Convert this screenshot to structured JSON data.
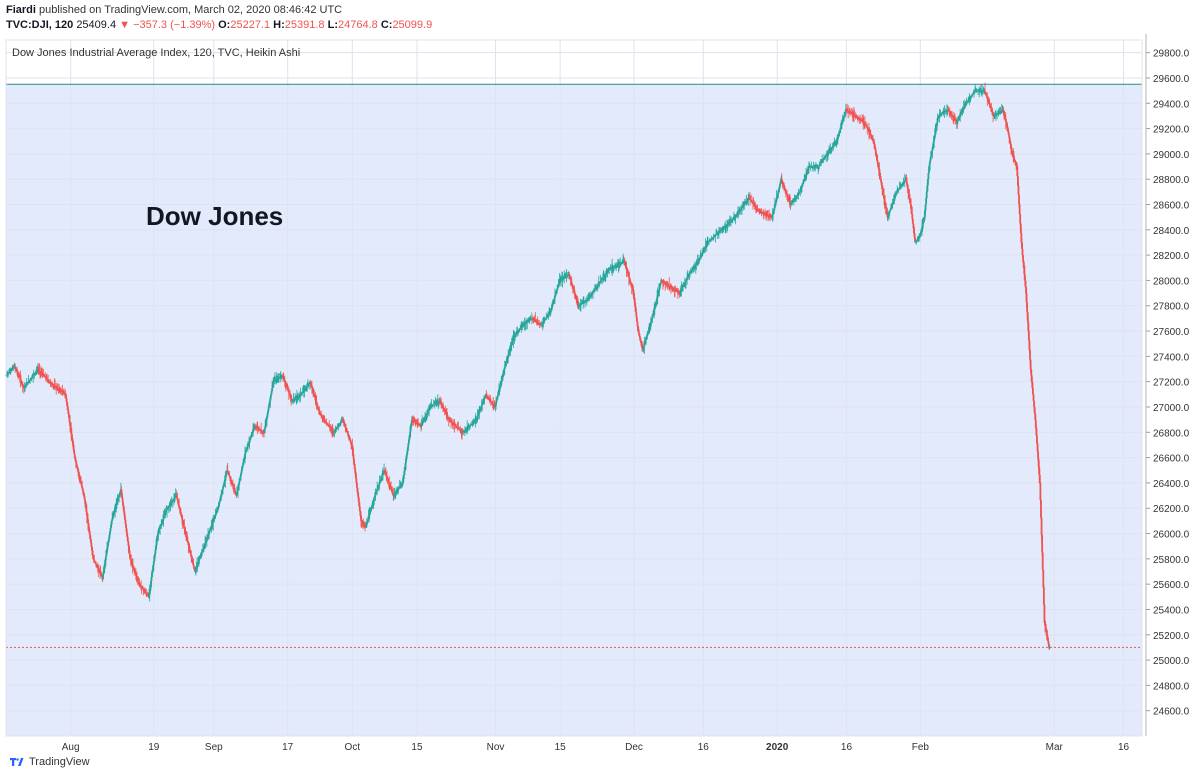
{
  "header": {
    "author": "Fiardi",
    "published_text": "published on TradingView.com, March 02, 2020 08:46:42 UTC",
    "symbol": "TVC:DJI, 120",
    "last": "25409.4",
    "change": "−357.3 (−1.39%)",
    "open_label": "O:",
    "open": "25227.1",
    "high_label": "H:",
    "high": "25391.8",
    "low_label": "L:",
    "low": "24764.8",
    "close_label": "C:",
    "close": "25099.9"
  },
  "footer": {
    "brand": "TradingView",
    "logo_icon": "tradingview-logo-icon"
  },
  "colors": {
    "up": "#26a69a",
    "down": "#ef5350",
    "background_band": "#e3eafb",
    "grid": "#dde3ef",
    "hline_top": "#2e8a88",
    "hline_price": "#ef5350"
  },
  "chart_data": {
    "type": "candlestick",
    "chart_style": "Heikin Ashi",
    "title": "Dow Jones Industrial Average Index, 120, TVC, Heikin Ashi",
    "annotation": "Dow Jones",
    "ylim": [
      24400,
      29900
    ],
    "y_ticks": [
      29800,
      29600,
      29400,
      29200,
      29000,
      28800,
      28600,
      28400,
      28200,
      28000,
      27800,
      27600,
      27400,
      27200,
      27000,
      26800,
      26600,
      26400,
      26200,
      26000,
      25800,
      25600,
      25400,
      25200,
      25000,
      24800,
      24600
    ],
    "y_tick_labels": [
      "29800.0",
      "29600.0",
      "29400.0",
      "29200.0",
      "29000.0",
      "28800.0",
      "28600.0",
      "28400.0",
      "28200.0",
      "28000.0",
      "27800.0",
      "27600.0",
      "27400.0",
      "27200.0",
      "27000.0",
      "26800.0",
      "26600.0",
      "26400.0",
      "26200.0",
      "26000.0",
      "25800.0",
      "25600.0",
      "25400.0",
      "25200.0",
      "25000.0",
      "24800.0",
      "24600.0"
    ],
    "x_range": [
      "2019-07-18",
      "2020-03-20"
    ],
    "x_ticks": [
      {
        "date": "2019-08-01",
        "label": "Aug",
        "bold": false
      },
      {
        "date": "2019-08-19",
        "label": "19",
        "bold": false
      },
      {
        "date": "2019-09-01",
        "label": "Sep",
        "bold": false
      },
      {
        "date": "2019-09-17",
        "label": "17",
        "bold": false
      },
      {
        "date": "2019-10-01",
        "label": "Oct",
        "bold": false
      },
      {
        "date": "2019-10-15",
        "label": "15",
        "bold": false
      },
      {
        "date": "2019-11-01",
        "label": "Nov",
        "bold": false
      },
      {
        "date": "2019-11-15",
        "label": "15",
        "bold": false
      },
      {
        "date": "2019-12-01",
        "label": "Dec",
        "bold": false
      },
      {
        "date": "2019-12-16",
        "label": "16",
        "bold": false
      },
      {
        "date": "2020-01-01",
        "label": "2020",
        "bold": true
      },
      {
        "date": "2020-01-16",
        "label": "16",
        "bold": false
      },
      {
        "date": "2020-02-01",
        "label": "Feb",
        "bold": false
      },
      {
        "date": "2020-03-01",
        "label": "Mar",
        "bold": false
      },
      {
        "date": "2020-03-16",
        "label": "16",
        "bold": false
      }
    ],
    "band_top": 29550,
    "price_line": 25100,
    "path": [
      {
        "date": "2019-07-18",
        "value": 27250
      },
      {
        "date": "2019-07-20",
        "value": 27320
      },
      {
        "date": "2019-07-22",
        "value": 27150
      },
      {
        "date": "2019-07-25",
        "value": 27300
      },
      {
        "date": "2019-07-28",
        "value": 27180
      },
      {
        "date": "2019-07-31",
        "value": 27100
      },
      {
        "date": "2019-08-02",
        "value": 26600
      },
      {
        "date": "2019-08-04",
        "value": 26300
      },
      {
        "date": "2019-08-06",
        "value": 25800
      },
      {
        "date": "2019-08-08",
        "value": 25650
      },
      {
        "date": "2019-08-10",
        "value": 26100
      },
      {
        "date": "2019-08-12",
        "value": 26350
      },
      {
        "date": "2019-08-14",
        "value": 25800
      },
      {
        "date": "2019-08-16",
        "value": 25600
      },
      {
        "date": "2019-08-18",
        "value": 25500
      },
      {
        "date": "2019-08-20",
        "value": 26000
      },
      {
        "date": "2019-08-22",
        "value": 26200
      },
      {
        "date": "2019-08-24",
        "value": 26300
      },
      {
        "date": "2019-08-26",
        "value": 26000
      },
      {
        "date": "2019-08-28",
        "value": 25700
      },
      {
        "date": "2019-08-30",
        "value": 25900
      },
      {
        "date": "2019-09-02",
        "value": 26200
      },
      {
        "date": "2019-09-04",
        "value": 26500
      },
      {
        "date": "2019-09-06",
        "value": 26300
      },
      {
        "date": "2019-09-08",
        "value": 26650
      },
      {
        "date": "2019-09-10",
        "value": 26850
      },
      {
        "date": "2019-09-12",
        "value": 26800
      },
      {
        "date": "2019-09-14",
        "value": 27200
      },
      {
        "date": "2019-09-16",
        "value": 27250
      },
      {
        "date": "2019-09-18",
        "value": 27050
      },
      {
        "date": "2019-09-20",
        "value": 27100
      },
      {
        "date": "2019-09-22",
        "value": 27200
      },
      {
        "date": "2019-09-24",
        "value": 26950
      },
      {
        "date": "2019-09-27",
        "value": 26800
      },
      {
        "date": "2019-09-29",
        "value": 26900
      },
      {
        "date": "2019-10-01",
        "value": 26700
      },
      {
        "date": "2019-10-02",
        "value": 26400
      },
      {
        "date": "2019-10-03",
        "value": 26100
      },
      {
        "date": "2019-10-04",
        "value": 26050
      },
      {
        "date": "2019-10-06",
        "value": 26300
      },
      {
        "date": "2019-10-08",
        "value": 26500
      },
      {
        "date": "2019-10-10",
        "value": 26300
      },
      {
        "date": "2019-10-12",
        "value": 26400
      },
      {
        "date": "2019-10-14",
        "value": 26900
      },
      {
        "date": "2019-10-16",
        "value": 26850
      },
      {
        "date": "2019-10-18",
        "value": 27000
      },
      {
        "date": "2019-10-20",
        "value": 27050
      },
      {
        "date": "2019-10-22",
        "value": 26900
      },
      {
        "date": "2019-10-25",
        "value": 26800
      },
      {
        "date": "2019-10-28",
        "value": 26900
      },
      {
        "date": "2019-10-30",
        "value": 27100
      },
      {
        "date": "2019-11-01",
        "value": 27000
      },
      {
        "date": "2019-11-03",
        "value": 27300
      },
      {
        "date": "2019-11-05",
        "value": 27550
      },
      {
        "date": "2019-11-07",
        "value": 27650
      },
      {
        "date": "2019-11-09",
        "value": 27700
      },
      {
        "date": "2019-11-11",
        "value": 27650
      },
      {
        "date": "2019-11-13",
        "value": 27750
      },
      {
        "date": "2019-11-15",
        "value": 28000
      },
      {
        "date": "2019-11-17",
        "value": 28050
      },
      {
        "date": "2019-11-19",
        "value": 27800
      },
      {
        "date": "2019-11-21",
        "value": 27850
      },
      {
        "date": "2019-11-23",
        "value": 27950
      },
      {
        "date": "2019-11-26",
        "value": 28100
      },
      {
        "date": "2019-11-29",
        "value": 28150
      },
      {
        "date": "2019-12-01",
        "value": 27900
      },
      {
        "date": "2019-12-02",
        "value": 27600
      },
      {
        "date": "2019-12-03",
        "value": 27450
      },
      {
        "date": "2019-12-05",
        "value": 27700
      },
      {
        "date": "2019-12-07",
        "value": 28000
      },
      {
        "date": "2019-12-09",
        "value": 27950
      },
      {
        "date": "2019-12-11",
        "value": 27900
      },
      {
        "date": "2019-12-13",
        "value": 28050
      },
      {
        "date": "2019-12-15",
        "value": 28150
      },
      {
        "date": "2019-12-17",
        "value": 28300
      },
      {
        "date": "2019-12-20",
        "value": 28400
      },
      {
        "date": "2019-12-23",
        "value": 28500
      },
      {
        "date": "2019-12-26",
        "value": 28650
      },
      {
        "date": "2019-12-28",
        "value": 28550
      },
      {
        "date": "2019-12-31",
        "value": 28500
      },
      {
        "date": "2020-01-02",
        "value": 28800
      },
      {
        "date": "2020-01-04",
        "value": 28600
      },
      {
        "date": "2020-01-06",
        "value": 28700
      },
      {
        "date": "2020-01-08",
        "value": 28900
      },
      {
        "date": "2020-01-10",
        "value": 28900
      },
      {
        "date": "2020-01-12",
        "value": 29000
      },
      {
        "date": "2020-01-14",
        "value": 29100
      },
      {
        "date": "2020-01-16",
        "value": 29350
      },
      {
        "date": "2020-01-18",
        "value": 29300
      },
      {
        "date": "2020-01-20",
        "value": 29250
      },
      {
        "date": "2020-01-22",
        "value": 29100
      },
      {
        "date": "2020-01-24",
        "value": 28700
      },
      {
        "date": "2020-01-25",
        "value": 28500
      },
      {
        "date": "2020-01-27",
        "value": 28700
      },
      {
        "date": "2020-01-29",
        "value": 28800
      },
      {
        "date": "2020-01-30",
        "value": 28600
      },
      {
        "date": "2020-01-31",
        "value": 28300
      },
      {
        "date": "2020-02-01",
        "value": 28350
      },
      {
        "date": "2020-02-02",
        "value": 28500
      },
      {
        "date": "2020-02-03",
        "value": 28900
      },
      {
        "date": "2020-02-05",
        "value": 29300
      },
      {
        "date": "2020-02-07",
        "value": 29350
      },
      {
        "date": "2020-02-09",
        "value": 29250
      },
      {
        "date": "2020-02-11",
        "value": 29400
      },
      {
        "date": "2020-02-13",
        "value": 29500
      },
      {
        "date": "2020-02-15",
        "value": 29500
      },
      {
        "date": "2020-02-17",
        "value": 29300
      },
      {
        "date": "2020-02-19",
        "value": 29350
      },
      {
        "date": "2020-02-20",
        "value": 29200
      },
      {
        "date": "2020-02-21",
        "value": 29000
      },
      {
        "date": "2020-02-22",
        "value": 28900
      },
      {
        "date": "2020-02-23",
        "value": 28300
      },
      {
        "date": "2020-02-24",
        "value": 27900
      },
      {
        "date": "2020-02-25",
        "value": 27300
      },
      {
        "date": "2020-02-26",
        "value": 26900
      },
      {
        "date": "2020-02-27",
        "value": 26400
      },
      {
        "date": "2020-02-28",
        "value": 25300
      },
      {
        "date": "2020-02-29",
        "value": 25100
      }
    ]
  }
}
